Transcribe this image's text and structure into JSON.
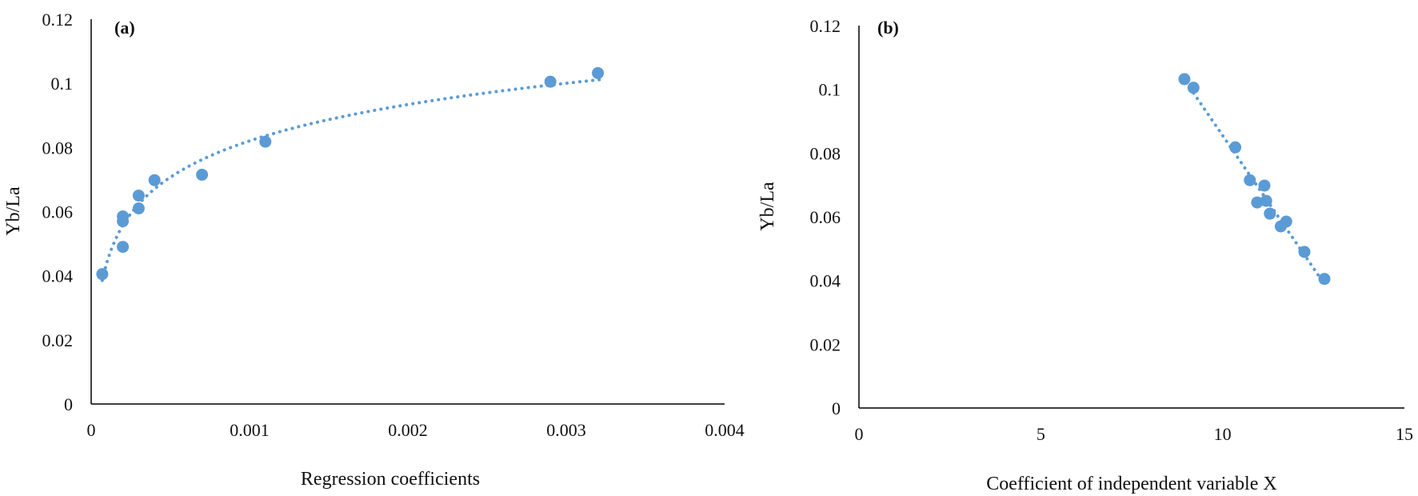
{
  "chart_data": [
    {
      "type": "scatter",
      "panel_label": "(a)",
      "title": "",
      "xlabel": "Regression coefficients",
      "ylabel": "Yb/La",
      "xlim": [
        0,
        0.004
      ],
      "ylim": [
        0,
        0.12
      ],
      "x_ticks": [
        0,
        0.001,
        0.002,
        0.003,
        0.004
      ],
      "x_tick_labels": [
        "0",
        "0.001",
        "0.002",
        "0.003",
        "0.004"
      ],
      "y_ticks": [
        0,
        0.02,
        0.04,
        0.06,
        0.08,
        0.1,
        0.12
      ],
      "y_tick_labels": [
        "0",
        "0.02",
        "0.04",
        "0.06",
        "0.08",
        "0.1",
        "0.12"
      ],
      "grid": false,
      "legend": "none",
      "marker_color": "#5b9bd5",
      "trendline": {
        "type": "logarithmic",
        "style": "dotted",
        "color": "#5b9bd5",
        "x_range": [
          7e-05,
          0.00322
        ]
      },
      "points": [
        {
          "x": 7e-05,
          "y": 0.0405
        },
        {
          "x": 0.0002,
          "y": 0.0585
        },
        {
          "x": 0.0002,
          "y": 0.057
        },
        {
          "x": 0.0002,
          "y": 0.049
        },
        {
          "x": 0.0003,
          "y": 0.065
        },
        {
          "x": 0.0003,
          "y": 0.061
        },
        {
          "x": 0.0004,
          "y": 0.0698
        },
        {
          "x": 0.0007,
          "y": 0.0715
        },
        {
          "x": 0.0011,
          "y": 0.0818
        },
        {
          "x": 0.0029,
          "y": 0.1005
        },
        {
          "x": 0.0032,
          "y": 0.1032
        }
      ]
    },
    {
      "type": "scatter",
      "panel_label": "(b)",
      "title": "",
      "xlabel": "Coefficient of independent variable X",
      "ylabel": "Yb/La",
      "xlim": [
        0,
        15
      ],
      "ylim": [
        0,
        0.12
      ],
      "x_ticks": [
        0,
        5,
        10,
        15
      ],
      "x_tick_labels": [
        "0",
        "5",
        "10",
        "15"
      ],
      "y_ticks": [
        0,
        0.02,
        0.04,
        0.06,
        0.08,
        0.1,
        0.12
      ],
      "y_tick_labels": [
        "0",
        "0.02",
        "0.04",
        "0.06",
        "0.08",
        "0.1",
        "0.12"
      ],
      "grid": false,
      "legend": "none",
      "marker_color": "#5b9bd5",
      "trendline": {
        "type": "linear",
        "style": "dotted",
        "color": "#5b9bd5",
        "x_range": [
          9.0,
          12.8
        ]
      },
      "points": [
        {
          "x": 8.95,
          "y": 0.1032
        },
        {
          "x": 9.2,
          "y": 0.1005
        },
        {
          "x": 10.35,
          "y": 0.0818
        },
        {
          "x": 10.75,
          "y": 0.0715
        },
        {
          "x": 11.15,
          "y": 0.0698
        },
        {
          "x": 10.95,
          "y": 0.0645
        },
        {
          "x": 11.2,
          "y": 0.065
        },
        {
          "x": 11.3,
          "y": 0.061
        },
        {
          "x": 11.6,
          "y": 0.057
        },
        {
          "x": 11.75,
          "y": 0.0585
        },
        {
          "x": 12.25,
          "y": 0.049
        },
        {
          "x": 12.8,
          "y": 0.0405
        }
      ]
    }
  ]
}
